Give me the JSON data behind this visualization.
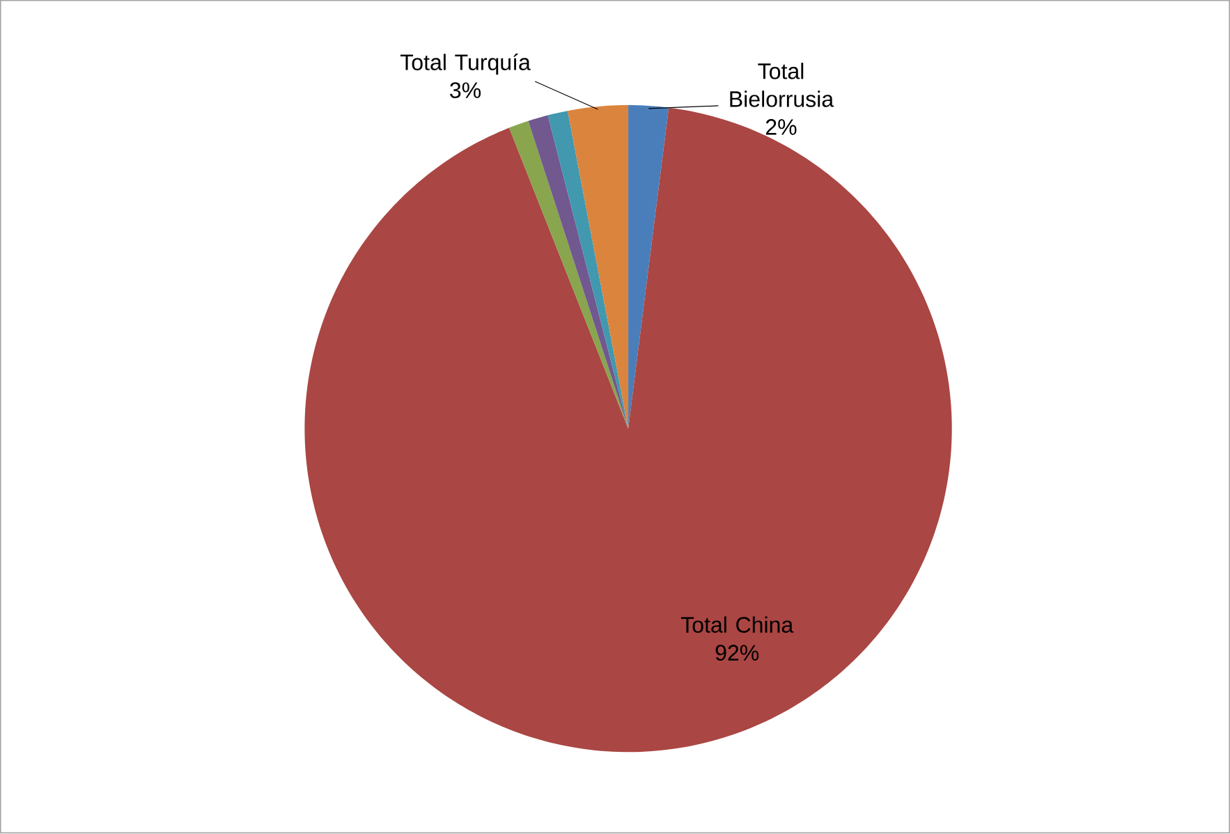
{
  "chart_data": {
    "type": "pie",
    "categories": [
      "Total Bielorrusia",
      "Total China",
      null,
      null,
      null,
      "Total Turquía"
    ],
    "values": [
      2,
      92,
      1,
      1,
      1,
      3
    ],
    "value_labels": [
      "2%",
      "92%",
      null,
      null,
      null,
      "3%"
    ],
    "colors": [
      "#4a7ebb",
      "#aa4643",
      "#89a54e",
      "#71588f",
      "#4198af",
      "#db843d"
    ]
  }
}
